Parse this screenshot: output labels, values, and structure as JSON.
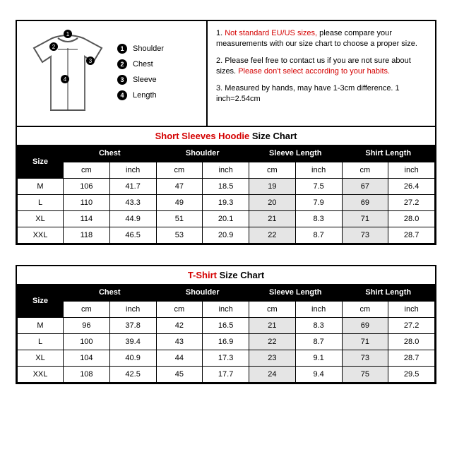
{
  "legend": [
    {
      "num": "1",
      "label": "Shoulder"
    },
    {
      "num": "2",
      "label": "Chest"
    },
    {
      "num": "3",
      "label": "Sleeve"
    },
    {
      "num": "4",
      "label": "Length"
    }
  ],
  "notes": {
    "n1_red": "Not standard EU/US sizes,",
    "n1_rest": " please compare your measurements with our size chart to choose a proper size.",
    "n2a": "2. Please feel free to contact us if you are not sure about sizes. ",
    "n2_red": "Please don't select according to your habits.",
    "n3": "3. Measured by hands, may have 1-3cm difference. 1 inch=2.54cm"
  },
  "chart1": {
    "title_red": "Short Sleeves Hoodie",
    "title_suffix": " Size Chart",
    "headers": [
      "Size",
      "Chest",
      "Shoulder",
      "Sleeve Length",
      "Shirt Length"
    ],
    "units": [
      "",
      "cm",
      "inch",
      "cm",
      "inch",
      "cm",
      "inch",
      "cm",
      "inch"
    ],
    "rows": [
      {
        "size": "M",
        "chest_cm": "106",
        "chest_in": "41.7",
        "sh_cm": "47",
        "sh_in": "18.5",
        "sl_cm": "19",
        "sl_in": "7.5",
        "len_cm": "67",
        "len_in": "26.4"
      },
      {
        "size": "L",
        "chest_cm": "110",
        "chest_in": "43.3",
        "sh_cm": "49",
        "sh_in": "19.3",
        "sl_cm": "20",
        "sl_in": "7.9",
        "len_cm": "69",
        "len_in": "27.2"
      },
      {
        "size": "XL",
        "chest_cm": "114",
        "chest_in": "44.9",
        "sh_cm": "51",
        "sh_in": "20.1",
        "sl_cm": "21",
        "sl_in": "8.3",
        "len_cm": "71",
        "len_in": "28.0"
      },
      {
        "size": "XXL",
        "chest_cm": "118",
        "chest_in": "46.5",
        "sh_cm": "53",
        "sh_in": "20.9",
        "sl_cm": "22",
        "sl_in": "8.7",
        "len_cm": "73",
        "len_in": "28.7"
      }
    ]
  },
  "chart2": {
    "title_red": "T-Shirt",
    "title_suffix": " Size Chart",
    "headers": [
      "Size",
      "Chest",
      "Shoulder",
      "Sleeve Length",
      "Shirt Length"
    ],
    "units": [
      "",
      "cm",
      "inch",
      "cm",
      "inch",
      "cm",
      "inch",
      "cm",
      "inch"
    ],
    "rows": [
      {
        "size": "M",
        "chest_cm": "96",
        "chest_in": "37.8",
        "sh_cm": "42",
        "sh_in": "16.5",
        "sl_cm": "21",
        "sl_in": "8.3",
        "len_cm": "69",
        "len_in": "27.2"
      },
      {
        "size": "L",
        "chest_cm": "100",
        "chest_in": "39.4",
        "sh_cm": "43",
        "sh_in": "16.9",
        "sl_cm": "22",
        "sl_in": "8.7",
        "len_cm": "71",
        "len_in": "28.0"
      },
      {
        "size": "XL",
        "chest_cm": "104",
        "chest_in": "40.9",
        "sh_cm": "44",
        "sh_in": "17.3",
        "sl_cm": "23",
        "sl_in": "9.1",
        "len_cm": "73",
        "len_in": "28.7"
      },
      {
        "size": "XXL",
        "chest_cm": "108",
        "chest_in": "42.5",
        "sh_cm": "45",
        "sh_in": "17.7",
        "sl_cm": "24",
        "sl_in": "9.4",
        "len_cm": "75",
        "len_in": "29.5"
      }
    ]
  },
  "colors": {
    "accent": "#d40000",
    "grey": "#e5e5e5"
  }
}
